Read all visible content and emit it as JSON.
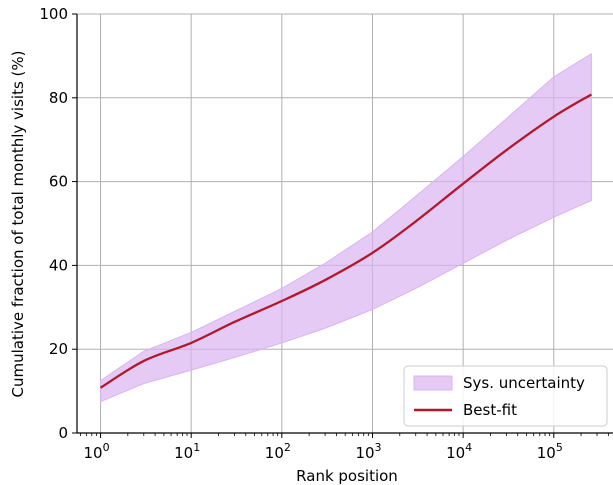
{
  "chart_data": {
    "type": "area",
    "xlabel": "Rank position",
    "ylabel": "Cumulative fraction of total monthly visits (%)",
    "xscale": "log",
    "xlim": [
      0.55,
      450000
    ],
    "ylim": [
      0,
      100
    ],
    "x_ticks": [
      {
        "value": 1,
        "base": "10",
        "exp": "0"
      },
      {
        "value": 10,
        "base": "10",
        "exp": "1"
      },
      {
        "value": 100,
        "base": "10",
        "exp": "2"
      },
      {
        "value": 1000,
        "base": "10",
        "exp": "3"
      },
      {
        "value": 10000,
        "base": "10",
        "exp": "4"
      },
      {
        "value": 100000,
        "base": "10",
        "exp": "5"
      }
    ],
    "y_ticks": [
      "0",
      "20",
      "40",
      "60",
      "80",
      "100"
    ],
    "grid": true,
    "legend_position": "lower-right",
    "series": [
      {
        "name": "Sys. uncertainty",
        "kind": "band",
        "color": "#d8b4ef",
        "x": [
          1,
          3,
          10,
          30,
          100,
          300,
          1000,
          3000,
          10000,
          30000,
          100000,
          260000
        ],
        "lower": [
          7.5,
          11.8,
          15,
          18,
          21.5,
          25,
          29.5,
          34.5,
          40.5,
          46,
          51.5,
          55.5
        ],
        "upper": [
          12.5,
          19.5,
          24,
          29,
          34.5,
          40.5,
          48,
          56.5,
          66,
          75,
          85,
          90.5
        ]
      },
      {
        "name": "Best-fit",
        "kind": "line",
        "color": "#b2182b",
        "x": [
          1,
          3,
          10,
          30,
          100,
          300,
          1000,
          3000,
          10000,
          30000,
          100000,
          260000
        ],
        "y": [
          10.8,
          17.2,
          21.5,
          26.5,
          31.5,
          36.5,
          43,
          50.5,
          59.5,
          67.5,
          75.5,
          80.8
        ]
      }
    ]
  }
}
